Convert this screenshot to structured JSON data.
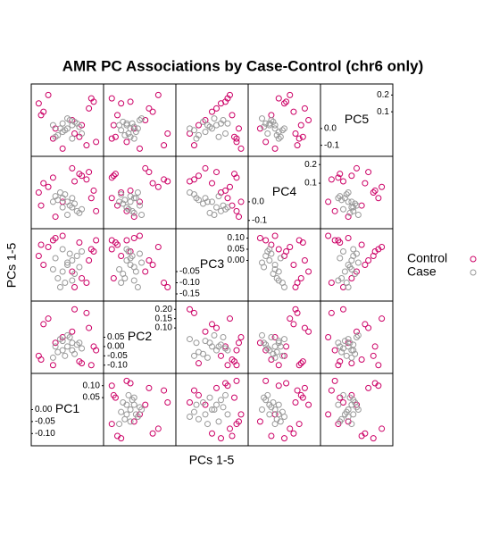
{
  "chart_data": {
    "type": "scatter_matrix",
    "title": "AMR PC Associations by Case-Control (chr6 only)",
    "x_label": "PCs 1-5",
    "y_label": "PCs 1-5",
    "legend_position": "right",
    "variables": [
      {
        "name": "PC1",
        "lim": [
          -0.14,
          0.14
        ],
        "ticks": [
          {
            "value": -0.1,
            "label": "-0.10"
          },
          -0.05,
          {
            "value": 0,
            "label": "0.00"
          },
          0.05,
          {
            "value": 0.1,
            "label": "0.10"
          }
        ]
      },
      {
        "name": "PC2",
        "lim": [
          -0.13,
          0.23
        ],
        "ticks": [
          {
            "value": -0.1,
            "label": "-0.10"
          },
          -0.05,
          {
            "value": 0,
            "label": "0.00"
          },
          0.05,
          {
            "value": 0.1,
            "label": "0.10"
          },
          0.15,
          {
            "value": 0.2,
            "label": "0.20"
          }
        ]
      },
      {
        "name": "PC3",
        "lim": [
          -0.17,
          0.13
        ],
        "ticks": [
          -0.15,
          {
            "value": -0.1,
            "label": "-0.10"
          },
          -0.05,
          {
            "value": 0,
            "label": "0.00"
          },
          0.05,
          {
            "value": 0.1,
            "label": "0.10"
          }
        ]
      },
      {
        "name": "PC4",
        "lim": [
          -0.13,
          0.23
        ],
        "ticks": [
          -0.1,
          {
            "value": 0,
            "label": "0.0"
          },
          0.1,
          0.2
        ]
      },
      {
        "name": "PC5",
        "lim": [
          -0.15,
          0.25
        ],
        "ticks": [
          -0.1,
          {
            "value": 0,
            "label": "0.0"
          },
          0.1,
          0.2
        ]
      }
    ],
    "series": [
      {
        "name": "Control",
        "color": "#cc0066",
        "values": [
          [
            0.05,
            -0.08,
            0.08,
            0.15,
            -0.05
          ],
          [
            -0.1,
            0.12,
            -0.02,
            0.1,
            0.1
          ],
          [
            0.1,
            -0.1,
            0.05,
            0.02,
            0.18
          ],
          [
            -0.05,
            0.02,
            0.1,
            -0.08,
            0.0
          ],
          [
            0.08,
            0.18,
            -0.1,
            0.12,
            -0.1
          ],
          [
            -0.12,
            -0.05,
            0.02,
            0.05,
            0.15
          ],
          [
            0.02,
            0.08,
            -0.05,
            0.18,
            0.05
          ],
          [
            0.12,
            -0.02,
            0.09,
            -0.05,
            -0.08
          ],
          [
            -0.08,
            0.15,
            0.06,
            0.08,
            0.2
          ],
          [
            0.06,
            -0.09,
            -0.08,
            0.14,
            0.02
          ],
          [
            -0.02,
            0.05,
            0.11,
            0.0,
            -0.12
          ],
          [
            0.09,
            0.1,
            0.0,
            0.16,
            0.12
          ],
          [
            -0.11,
            -0.07,
            0.07,
            -0.02,
            0.08
          ],
          [
            0.03,
            0.2,
            -0.12,
            0.11,
            -0.03
          ],
          [
            0.11,
            0.0,
            0.04,
            0.06,
            0.16
          ],
          [
            -0.06,
            -0.1,
            0.09,
            0.13,
            -0.06
          ]
        ]
      },
      {
        "name": "Case",
        "color": "#999999",
        "values": [
          [
            0.0,
            0.0,
            -0.02,
            0.0,
            0.0
          ],
          [
            0.02,
            -0.02,
            0.0,
            -0.03,
            0.02
          ],
          [
            -0.02,
            0.03,
            -0.05,
            0.02,
            -0.02
          ],
          [
            0.04,
            0.01,
            0.02,
            -0.05,
            0.03
          ],
          [
            -0.04,
            -0.03,
            -0.08,
            0.01,
            -0.04
          ],
          [
            0.01,
            0.05,
            0.03,
            -0.02,
            0.05
          ],
          [
            -0.01,
            -0.05,
            -0.1,
            0.04,
            -0.01
          ],
          [
            0.05,
            0.02,
            -0.03,
            -0.06,
            0.01
          ],
          [
            -0.05,
            0.0,
            0.01,
            0.03,
            -0.05
          ],
          [
            0.03,
            -0.04,
            -0.06,
            -0.01,
            0.04
          ],
          [
            -0.03,
            0.04,
            -0.12,
            0.05,
            0.0
          ],
          [
            0.06,
            -0.01,
            0.04,
            -0.04,
            -0.03
          ],
          [
            0.0,
            0.06,
            -0.01,
            -0.07,
            0.06
          ],
          [
            -0.06,
            -0.06,
            -0.04,
            0.0,
            0.02
          ],
          [
            0.02,
            0.02,
            -0.09,
            0.02,
            -0.06
          ],
          [
            -0.02,
            -0.02,
            0.05,
            -0.03,
            0.03
          ]
        ]
      }
    ]
  }
}
